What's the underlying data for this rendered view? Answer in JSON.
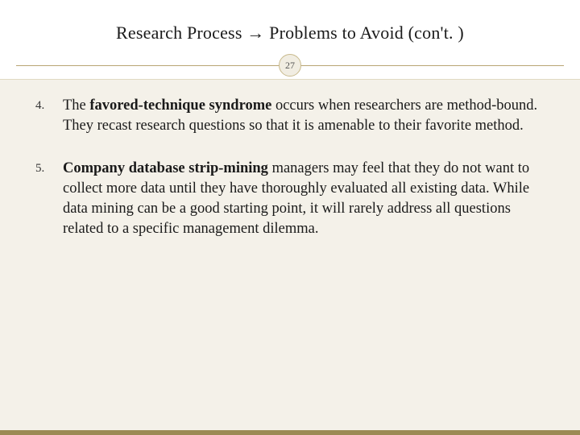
{
  "slide": {
    "title": "Research Process → Problems to Avoid (con't. )",
    "page_number": "27",
    "start_counter": 3,
    "items": [
      {
        "prefix": "The ",
        "bold": "favored-technique syndrome",
        "rest": " occurs when researchers are method-bound. They recast research questions so that it is amenable to their favorite method."
      },
      {
        "prefix": "",
        "bold": "Company database strip-mining",
        "rest": " managers may feel that they do not want to collect more data until they have thoroughly evaluated all existing data. While data mining can be a good starting point, it will rarely address all questions related to a specific management dilemma."
      }
    ],
    "colors": {
      "background": "#ffffff",
      "content_bg": "#f4f1e9",
      "accent_line": "#b8a574",
      "bottom_bar": "#9c8a54",
      "badge_bg": "#f1ede2",
      "badge_border": "#c9ba8d",
      "text": "#1a1a1a"
    },
    "typography": {
      "title_fontsize": 22,
      "body_fontsize": 18.5,
      "number_fontsize": 15,
      "badge_fontsize": 12,
      "font_family": "Georgia, serif"
    }
  }
}
